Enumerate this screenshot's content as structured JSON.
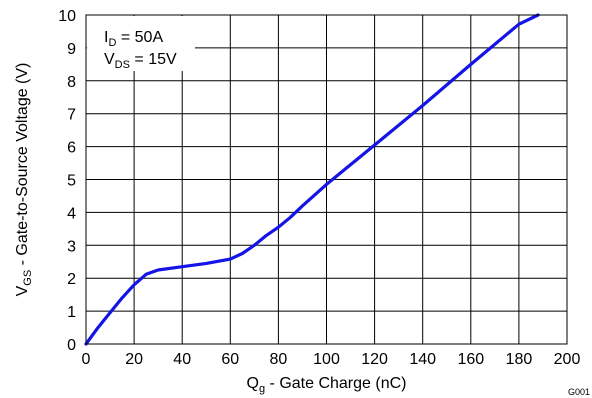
{
  "chart_data": {
    "type": "line",
    "title": "",
    "xlabel": {
      "main": "Q",
      "sub": "g",
      "rest": " - Gate Charge  (nC)"
    },
    "ylabel": {
      "main": "V",
      "sub": "GS",
      "rest": " - Gate-to-Source Voltage (V)"
    },
    "xlim": [
      0,
      200
    ],
    "ylim": [
      0,
      10
    ],
    "xticks": [
      0,
      20,
      40,
      60,
      80,
      100,
      120,
      140,
      160,
      180,
      200
    ],
    "yticks": [
      0,
      1,
      2,
      3,
      4,
      5,
      6,
      7,
      8,
      9,
      10
    ],
    "grid": true,
    "annotations": [
      {
        "main": "I",
        "sub": "D",
        "rest": " = 50A"
      },
      {
        "main": "V",
        "sub": "DS",
        "rest": " = 15V"
      }
    ],
    "figure_id": "G001",
    "series": [
      {
        "color": "#1414e6",
        "x": [
          0,
          5,
          10,
          15,
          20,
          25,
          30,
          40,
          50,
          60,
          65,
          70,
          75,
          80,
          85,
          90,
          100,
          120,
          140,
          160,
          180,
          188
        ],
        "y": [
          0,
          0.5,
          0.95,
          1.4,
          1.8,
          2.12,
          2.25,
          2.35,
          2.45,
          2.58,
          2.75,
          3.0,
          3.3,
          3.55,
          3.85,
          4.2,
          4.85,
          6.05,
          7.25,
          8.5,
          9.72,
          10.0
        ]
      }
    ]
  }
}
